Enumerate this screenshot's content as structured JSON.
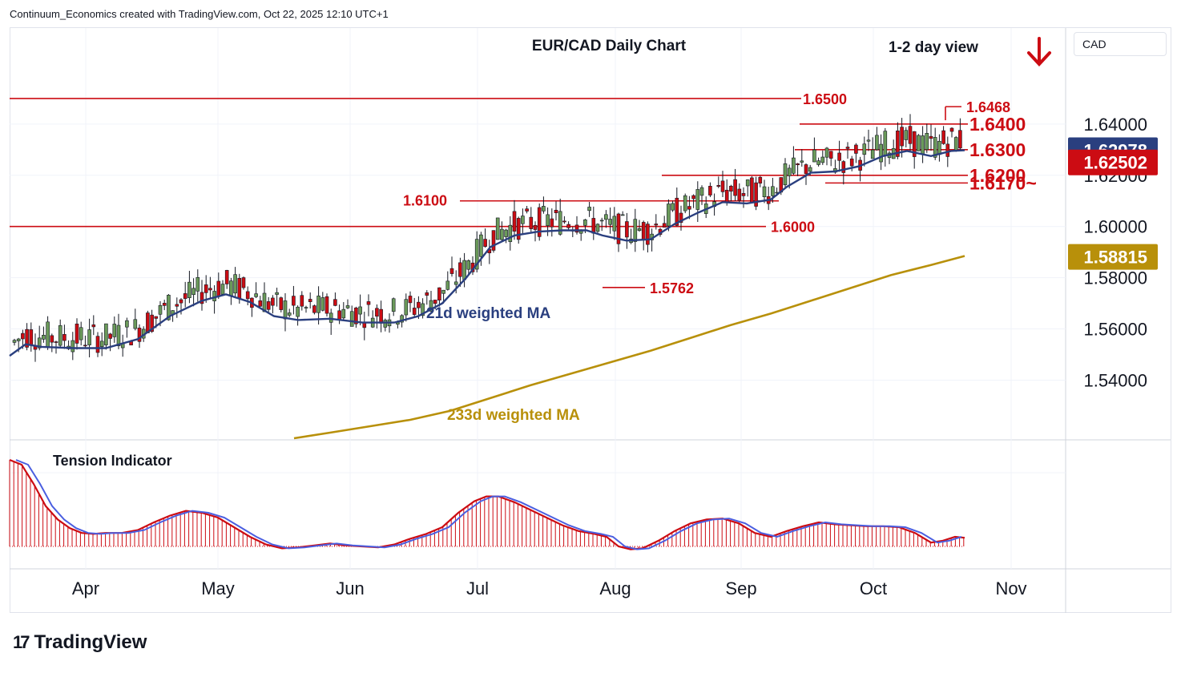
{
  "header": {
    "attribution": "Continuum_Economics created with TradingView.com, Oct 22, 2025 12:10 UTC+1"
  },
  "currency_label": "CAD",
  "brand": {
    "name": "TradingView",
    "logo_mark": "17"
  },
  "chart_data": {
    "type": "candlestick",
    "title": "EUR/CAD Daily Chart",
    "subtitle": "1-2 day view",
    "view_arrow": "down",
    "price_axis": {
      "ticks": [
        1.54,
        1.56,
        1.58,
        1.6,
        1.62,
        1.64
      ],
      "tick_labels": [
        "1.54000",
        "1.56000",
        "1.58000",
        "1.60000",
        "1.62000",
        "1.64000"
      ],
      "ylim": [
        1.517,
        1.6775
      ]
    },
    "time_axis": {
      "labels": [
        "Apr",
        "May",
        "Jun",
        "Jul",
        "Aug",
        "Sep",
        "Oct",
        "Nov"
      ]
    },
    "price_badges": [
      {
        "value": "1.62978",
        "color": "#2a3f7f",
        "price": 1.62978
      },
      {
        "value": "1.62502",
        "color": "#cc0c13",
        "price": 1.62502
      },
      {
        "value": "1.58815",
        "color": "#b8900a",
        "price": 1.58815
      }
    ],
    "levels": [
      {
        "label": "1.6500",
        "price": 1.65
      },
      {
        "label": "1.6468",
        "price": 1.6468
      },
      {
        "label": "1.6400",
        "price": 1.64
      },
      {
        "label": "1.6300",
        "price": 1.63
      },
      {
        "label": "1.6200",
        "price": 1.62
      },
      {
        "label": "1.6170~",
        "price": 1.617
      },
      {
        "label": "1.6100",
        "price": 1.61
      },
      {
        "label": "1.6000",
        "price": 1.6
      },
      {
        "label": "1.5762",
        "price": 1.5762
      }
    ],
    "ma_labels": {
      "ma21": "21d weighted MA",
      "ma233": "233d weighted MA"
    },
    "ma21_color": "#2a3f7f",
    "ma233_color": "#b8900a",
    "up_color": "#6b9a5a",
    "down_color": "#cc0c13",
    "ma21_points": [
      [
        0,
        1.5495
      ],
      [
        20,
        1.554
      ],
      [
        40,
        1.553
      ],
      [
        80,
        1.5525
      ],
      [
        120,
        1.5525
      ],
      [
        160,
        1.556
      ],
      [
        200,
        1.565
      ],
      [
        240,
        1.571
      ],
      [
        270,
        1.5735
      ],
      [
        300,
        1.5705
      ],
      [
        330,
        1.565
      ],
      [
        360,
        1.5635
      ],
      [
        400,
        1.564
      ],
      [
        440,
        1.5625
      ],
      [
        480,
        1.5625
      ],
      [
        510,
        1.565
      ],
      [
        540,
        1.57
      ],
      [
        570,
        1.58
      ],
      [
        600,
        1.592
      ],
      [
        630,
        1.5965
      ],
      [
        660,
        1.598
      ],
      [
        690,
        1.5985
      ],
      [
        720,
        1.5985
      ],
      [
        740,
        1.5965
      ],
      [
        770,
        1.5945
      ],
      [
        800,
        1.595
      ],
      [
        830,
        1.601
      ],
      [
        860,
        1.6055
      ],
      [
        890,
        1.6095
      ],
      [
        920,
        1.609
      ],
      [
        950,
        1.6105
      ],
      [
        970,
        1.6155
      ],
      [
        1000,
        1.621
      ],
      [
        1030,
        1.6215
      ],
      [
        1060,
        1.6235
      ],
      [
        1090,
        1.6275
      ],
      [
        1120,
        1.6295
      ],
      [
        1150,
        1.6275
      ],
      [
        1175,
        1.6295
      ],
      [
        1192,
        1.6298
      ]
    ],
    "ma233_points": [
      [
        355,
        1.5173
      ],
      [
        400,
        1.5195
      ],
      [
        450,
        1.522
      ],
      [
        500,
        1.5245
      ],
      [
        550,
        1.528
      ],
      [
        600,
        1.533
      ],
      [
        650,
        1.538
      ],
      [
        700,
        1.5425
      ],
      [
        750,
        1.547
      ],
      [
        800,
        1.5515
      ],
      [
        850,
        1.5565
      ],
      [
        900,
        1.5615
      ],
      [
        950,
        1.566
      ],
      [
        1000,
        1.571
      ],
      [
        1050,
        1.576
      ],
      [
        1100,
        1.581
      ],
      [
        1150,
        1.585
      ],
      [
        1192,
        1.5885
      ]
    ],
    "tension_indicator": {
      "title": "Tension Indicator",
      "points": [
        [
          0,
          0.9
        ],
        [
          15,
          0.85
        ],
        [
          30,
          0.65
        ],
        [
          45,
          0.42
        ],
        [
          60,
          0.28
        ],
        [
          75,
          0.19
        ],
        [
          90,
          0.14
        ],
        [
          105,
          0.13
        ],
        [
          120,
          0.14
        ],
        [
          140,
          0.14
        ],
        [
          160,
          0.17
        ],
        [
          180,
          0.25
        ],
        [
          200,
          0.32
        ],
        [
          220,
          0.37
        ],
        [
          240,
          0.35
        ],
        [
          260,
          0.3
        ],
        [
          280,
          0.2
        ],
        [
          300,
          0.1
        ],
        [
          320,
          0.02
        ],
        [
          340,
          -0.02
        ],
        [
          360,
          -0.01
        ],
        [
          380,
          0.01
        ],
        [
          400,
          0.03
        ],
        [
          420,
          0.01
        ],
        [
          440,
          0.0
        ],
        [
          460,
          -0.01
        ],
        [
          480,
          0.02
        ],
        [
          500,
          0.08
        ],
        [
          520,
          0.13
        ],
        [
          540,
          0.2
        ],
        [
          560,
          0.35
        ],
        [
          580,
          0.47
        ],
        [
          595,
          0.52
        ],
        [
          610,
          0.52
        ],
        [
          630,
          0.46
        ],
        [
          650,
          0.38
        ],
        [
          670,
          0.3
        ],
        [
          690,
          0.22
        ],
        [
          710,
          0.16
        ],
        [
          730,
          0.13
        ],
        [
          745,
          0.1
        ],
        [
          760,
          0.0
        ],
        [
          775,
          -0.03
        ],
        [
          790,
          -0.02
        ],
        [
          810,
          0.06
        ],
        [
          830,
          0.16
        ],
        [
          850,
          0.24
        ],
        [
          870,
          0.28
        ],
        [
          890,
          0.29
        ],
        [
          910,
          0.24
        ],
        [
          930,
          0.14
        ],
        [
          950,
          0.1
        ],
        [
          970,
          0.16
        ],
        [
          990,
          0.21
        ],
        [
          1010,
          0.25
        ],
        [
          1030,
          0.23
        ],
        [
          1050,
          0.22
        ],
        [
          1070,
          0.21
        ],
        [
          1090,
          0.21
        ],
        [
          1110,
          0.2
        ],
        [
          1130,
          0.14
        ],
        [
          1150,
          0.04
        ],
        [
          1165,
          0.06
        ],
        [
          1180,
          0.1
        ],
        [
          1192,
          0.09
        ]
      ]
    }
  }
}
